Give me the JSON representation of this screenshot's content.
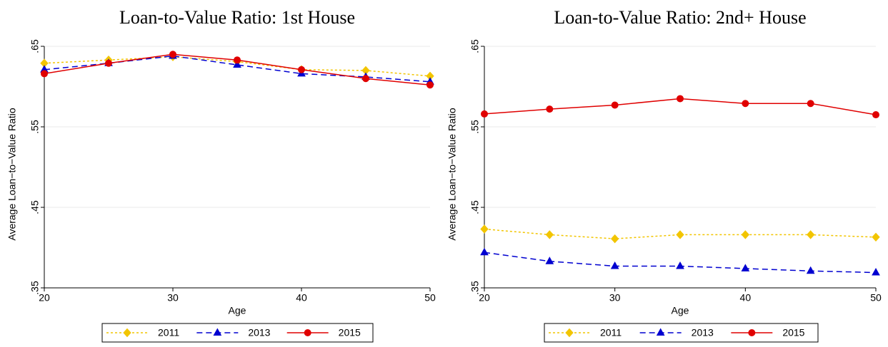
{
  "chart_data": [
    {
      "type": "line",
      "title": "Loan-to-Value Ratio: 1st House",
      "xlabel": "Age",
      "ylabel": "Average Loan−to−Value Ratio",
      "x": [
        20,
        25,
        30,
        35,
        40,
        45,
        50
      ],
      "xlim": [
        20,
        50
      ],
      "xticks": [
        20,
        30,
        40,
        50
      ],
      "ylim": [
        0.35,
        0.65
      ],
      "yticks": [
        {
          "value": 0.35,
          "label": ".35"
        },
        {
          "value": 0.45,
          "label": ".45"
        },
        {
          "value": 0.55,
          "label": ".55"
        },
        {
          "value": 0.65,
          "label": ".65"
        }
      ],
      "grid": true,
      "legend": "bottom",
      "series": [
        {
          "name": "2011",
          "color": "#f2c500",
          "marker": "diamond",
          "dash": "3,3",
          "values": [
            0.629,
            0.633,
            0.637,
            0.631,
            0.621,
            0.62,
            0.613
          ]
        },
        {
          "name": "2013",
          "color": "#0000d0",
          "marker": "triangle",
          "dash": "8,5",
          "values": [
            0.621,
            0.629,
            0.638,
            0.627,
            0.616,
            0.612,
            0.606
          ]
        },
        {
          "name": "2015",
          "color": "#e00000",
          "marker": "circle",
          "dash": "none",
          "values": [
            0.616,
            0.629,
            0.64,
            0.633,
            0.621,
            0.61,
            0.602
          ]
        }
      ]
    },
    {
      "type": "line",
      "title": "Loan-to-Value Ratio: 2nd+ House",
      "xlabel": "Age",
      "ylabel": "Average Loan−to−Value Ratio",
      "x": [
        20,
        25,
        30,
        35,
        40,
        45,
        50
      ],
      "xlim": [
        20,
        50
      ],
      "xticks": [
        20,
        30,
        40,
        50
      ],
      "ylim": [
        0.35,
        0.65
      ],
      "yticks": [
        {
          "value": 0.35,
          "label": ".35"
        },
        {
          "value": 0.45,
          "label": ".45"
        },
        {
          "value": 0.55,
          "label": ".55"
        },
        {
          "value": 0.65,
          "label": ".65"
        }
      ],
      "grid": true,
      "legend": "bottom",
      "series": [
        {
          "name": "2011",
          "color": "#f2c500",
          "marker": "diamond",
          "dash": "3,3",
          "values": [
            0.423,
            0.416,
            0.411,
            0.416,
            0.416,
            0.416,
            0.413
          ]
        },
        {
          "name": "2013",
          "color": "#0000d0",
          "marker": "triangle",
          "dash": "8,5",
          "values": [
            0.394,
            0.383,
            0.377,
            0.377,
            0.374,
            0.371,
            0.369
          ]
        },
        {
          "name": "2015",
          "color": "#e00000",
          "marker": "circle",
          "dash": "none",
          "values": [
            0.566,
            0.572,
            0.577,
            0.585,
            0.579,
            0.579,
            0.565
          ]
        }
      ]
    }
  ]
}
